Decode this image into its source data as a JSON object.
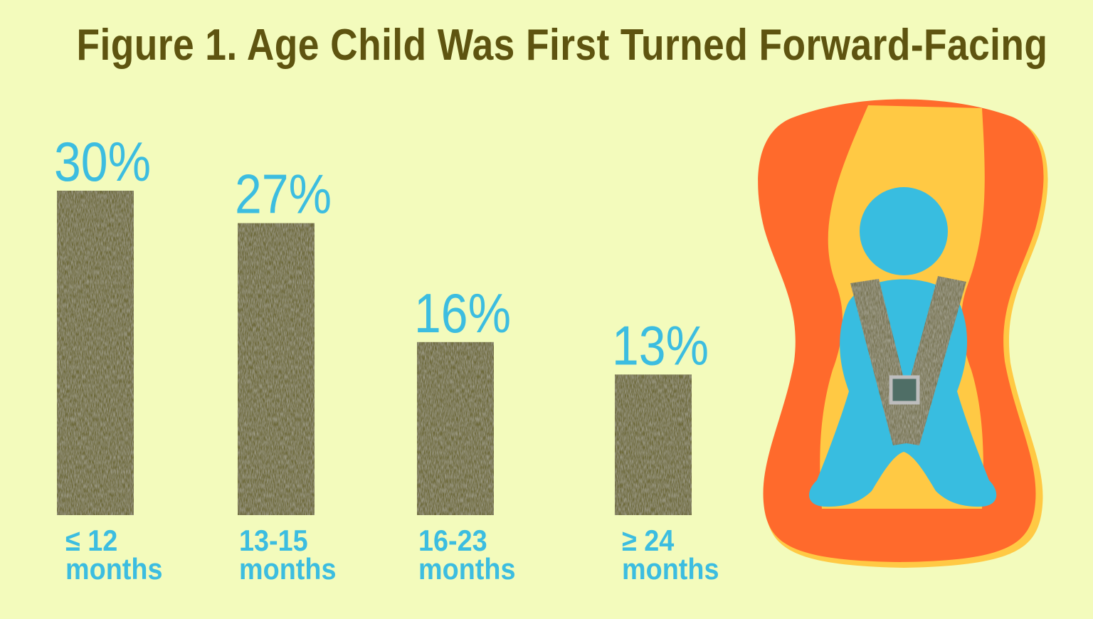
{
  "title": "Figure 1. Age Child Was First Turned Forward-Facing",
  "colors": {
    "background": "#f3fbbc",
    "title": "#5e5410",
    "bar": "#6e6b3a",
    "label": "#3cbde0",
    "seat_outer": "#ff6a2c",
    "seat_inner": "#ffc944",
    "child": "#38bde0",
    "belt": "#7a7756",
    "buckle": "#4f6e66"
  },
  "chart_data": {
    "type": "bar",
    "categories": [
      [
        "≤ 12",
        "months"
      ],
      [
        "13-15",
        "months"
      ],
      [
        "16-23",
        "months"
      ],
      [
        "≥ 24",
        "months"
      ]
    ],
    "values": [
      30,
      27,
      16,
      13
    ],
    "value_labels": [
      "30%",
      "27%",
      "16%",
      "13%"
    ],
    "unit": "%",
    "title": "Figure 1. Age Child Was First Turned Forward-Facing",
    "xlabel": "",
    "ylabel": "",
    "ylim": [
      0,
      30
    ],
    "grid": false,
    "legend": "none"
  },
  "illustration": {
    "name": "child-car-seat-icon"
  }
}
